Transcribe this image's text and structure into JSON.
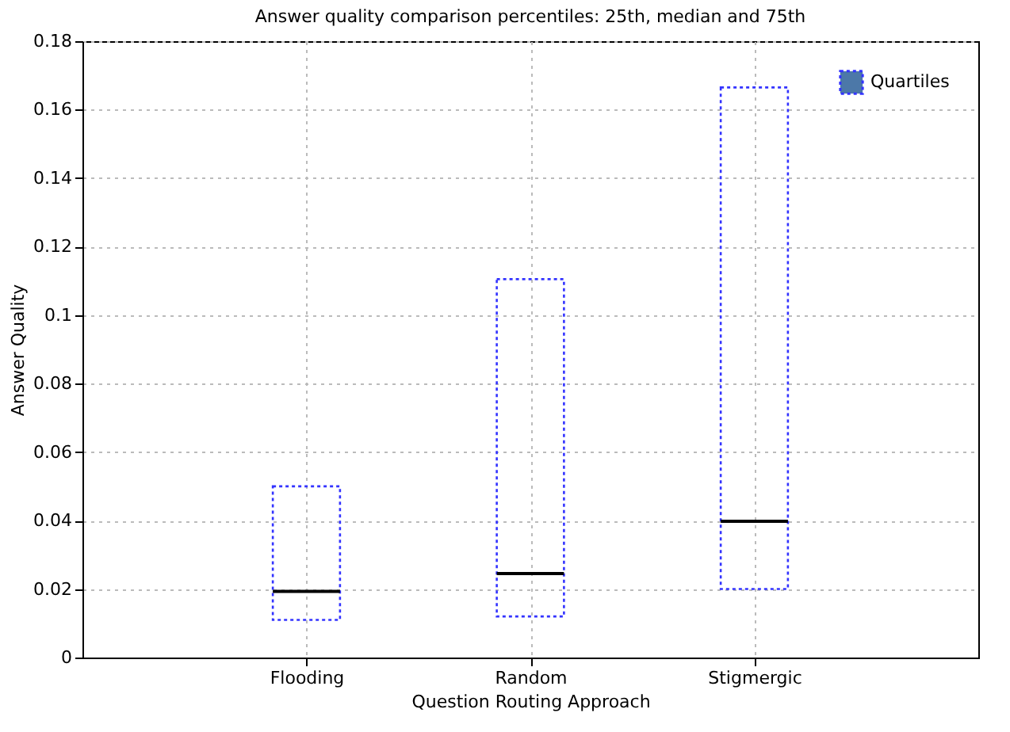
{
  "chart_data": {
    "type": "box",
    "title": "Answer quality comparison percentiles: 25th, median and 75th",
    "xlabel": "Question Routing Approach",
    "ylabel": "Answer Quality",
    "categories": [
      "Flooding",
      "Random",
      "Stigmergic"
    ],
    "series": [
      {
        "name": "Quartiles",
        "color": "#3333ff",
        "line_style": "dotted",
        "boxes": [
          {
            "low": 0.011,
            "q1": 0.011,
            "median": 0.0193,
            "q3": 0.05,
            "high": 0.05
          },
          {
            "low": 0.012,
            "q1": 0.012,
            "median": 0.0245,
            "q3": 0.1105,
            "high": 0.1105
          },
          {
            "low": 0.02,
            "q1": 0.02,
            "median": 0.0398,
            "q3": 0.1665,
            "high": 0.1665
          }
        ]
      }
    ],
    "ylim": [
      0,
      0.18
    ],
    "yticks": [
      0,
      0.02,
      0.04,
      0.06,
      0.08,
      0.1,
      0.12,
      0.14,
      0.16,
      0.18
    ],
    "grid": true,
    "legend": "top right"
  }
}
